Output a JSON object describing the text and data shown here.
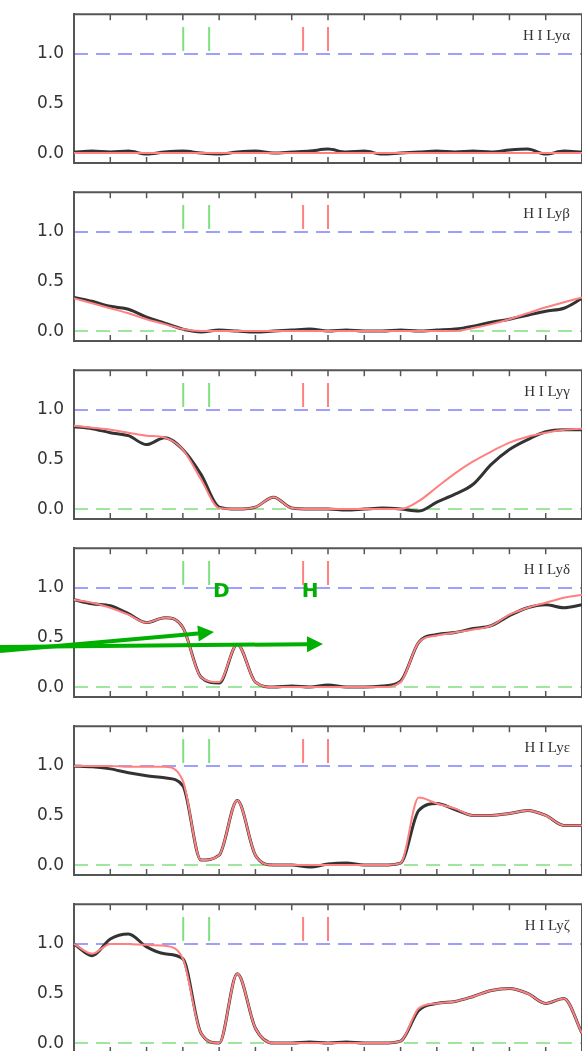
{
  "chart_data": [
    {
      "type": "line",
      "title": "H I Lyα",
      "categories": [
        null,
        null,
        null,
        null,
        null,
        null,
        null,
        null,
        null,
        null,
        null,
        null,
        null,
        null,
        null,
        null,
        null,
        null,
        null,
        null,
        null,
        null,
        null,
        null,
        null,
        null,
        null,
        null,
        null
      ],
      "ylim": [
        -0.1,
        1.4
      ],
      "yticks": [
        {
          "value": 0,
          "label": "0.0"
        },
        {
          "value": 0.5,
          "label": "0.5"
        },
        {
          "value": 1,
          "label": "1.0"
        }
      ],
      "tick_labels": "y",
      "series": [
        {
          "color": "#333333",
          "values": [
            0.01,
            0.02,
            0.01,
            0.02,
            -0.01,
            0.01,
            0.02,
            0.0,
            -0.01,
            0.01,
            0.02,
            0.0,
            0.01,
            0.02,
            0.04,
            0.01,
            0.02,
            -0.01,
            0.0,
            0.01,
            0.02,
            0.01,
            0.02,
            0.01,
            0.03,
            0.04,
            -0.01,
            0.02,
            0.01
          ]
        },
        {
          "color": "#ff8080",
          "values": [
            0.0,
            0.0,
            0.0,
            0.0,
            0.0,
            0.0,
            0.0,
            0.0,
            0.0,
            0.0,
            0.0,
            0.0,
            0.0,
            0.0,
            0.0,
            0.0,
            0.0,
            0.0,
            0.0,
            0.0,
            0.0,
            0.0,
            0.0,
            0.0,
            0.0,
            0.0,
            0.0,
            0.0,
            0.0
          ]
        }
      ],
      "ref_lines": [
        {
          "axis": "y",
          "value": 1,
          "color": "#8080ff",
          "line_style": "dashed"
        }
      ]
    },
    {
      "type": "line",
      "title": "H I Lyβ",
      "categories": [
        null,
        null,
        null,
        null,
        null,
        null,
        null,
        null,
        null,
        null,
        null,
        null,
        null,
        null,
        null,
        null,
        null,
        null,
        null,
        null,
        null,
        null,
        null,
        null,
        null,
        null,
        null,
        null,
        null
      ],
      "ylim": [
        -0.1,
        1.4
      ],
      "yticks": [
        {
          "value": 0,
          "label": "0.0"
        },
        {
          "value": 0.5,
          "label": "0.5"
        },
        {
          "value": 1,
          "label": "1.0"
        }
      ],
      "tick_labels": "y",
      "series": [
        {
          "color": "#333333",
          "values": [
            0.34,
            0.3,
            0.25,
            0.22,
            0.14,
            0.08,
            0.02,
            -0.01,
            0.01,
            0.0,
            -0.01,
            0.0,
            0.01,
            0.02,
            0.0,
            0.01,
            0.0,
            0.0,
            0.01,
            0.0,
            0.01,
            0.02,
            0.05,
            0.09,
            0.12,
            0.16,
            0.2,
            0.23,
            0.33
          ]
        },
        {
          "color": "#ff8080",
          "values": [
            0.33,
            0.28,
            0.23,
            0.18,
            0.12,
            0.07,
            0.02,
            0.0,
            0.0,
            0.0,
            0.0,
            0.0,
            0.0,
            0.0,
            0.0,
            0.0,
            0.0,
            0.0,
            0.0,
            0.0,
            0.0,
            0.0,
            0.03,
            0.07,
            0.12,
            0.18,
            0.24,
            0.29,
            0.34
          ]
        }
      ],
      "ref_lines": [
        {
          "axis": "y",
          "value": 1,
          "color": "#8080ff",
          "line_style": "dashed"
        },
        {
          "axis": "y",
          "value": 0,
          "color": "#80e080",
          "line_style": "dashed"
        }
      ]
    },
    {
      "type": "line",
      "title": "H I Lyγ",
      "categories": [
        null,
        null,
        null,
        null,
        null,
        null,
        null,
        null,
        null,
        null,
        null,
        null,
        null,
        null,
        null,
        null,
        null,
        null,
        null,
        null,
        null,
        null,
        null,
        null,
        null,
        null,
        null,
        null,
        null
      ],
      "ylim": [
        -0.1,
        1.4
      ],
      "yticks": [
        {
          "value": 0,
          "label": "0.0"
        },
        {
          "value": 0.5,
          "label": "0.5"
        },
        {
          "value": 1,
          "label": "1.0"
        }
      ],
      "tick_labels": "y",
      "series": [
        {
          "color": "#333333",
          "values": [
            0.83,
            0.81,
            0.77,
            0.74,
            0.65,
            0.72,
            0.6,
            0.35,
            0.02,
            0.0,
            0.02,
            0.12,
            0.01,
            0.0,
            0.0,
            -0.01,
            0.0,
            0.01,
            0.0,
            -0.02,
            0.07,
            0.15,
            0.25,
            0.45,
            0.6,
            0.7,
            0.78,
            0.8,
            0.8
          ]
        },
        {
          "color": "#ff8080",
          "values": [
            0.84,
            0.82,
            0.8,
            0.77,
            0.74,
            0.72,
            0.6,
            0.3,
            0.01,
            0.0,
            0.02,
            0.12,
            0.01,
            0.0,
            0.0,
            0.0,
            0.0,
            0.0,
            0.0,
            0.08,
            0.22,
            0.36,
            0.48,
            0.58,
            0.67,
            0.73,
            0.77,
            0.8,
            0.81
          ]
        }
      ],
      "ref_lines": [
        {
          "axis": "y",
          "value": 1,
          "color": "#8080ff",
          "line_style": "dashed"
        },
        {
          "axis": "y",
          "value": 0,
          "color": "#80e080",
          "line_style": "dashed"
        }
      ]
    },
    {
      "type": "line",
      "title": "H I Lyδ",
      "categories": [
        null,
        null,
        null,
        null,
        null,
        null,
        null,
        null,
        null,
        null,
        null,
        null,
        null,
        null,
        null,
        null,
        null,
        null,
        null,
        null,
        null,
        null,
        null,
        null,
        null,
        null,
        null,
        null,
        null
      ],
      "ylim": [
        -0.1,
        1.4
      ],
      "yticks": [
        {
          "value": 0,
          "label": "0.0"
        },
        {
          "value": 0.5,
          "label": "0.5"
        },
        {
          "value": 1,
          "label": "1.0"
        }
      ],
      "tick_labels": "y",
      "series": [
        {
          "color": "#333333",
          "values": [
            0.88,
            0.84,
            0.82,
            0.74,
            0.65,
            0.7,
            0.6,
            0.1,
            0.04,
            0.43,
            0.05,
            0.0,
            0.01,
            0.0,
            0.02,
            0.0,
            0.0,
            0.01,
            0.06,
            0.45,
            0.53,
            0.55,
            0.59,
            0.62,
            0.72,
            0.8,
            0.83,
            0.8,
            0.83
          ]
        },
        {
          "color": "#ff8080",
          "values": [
            0.88,
            0.85,
            0.8,
            0.73,
            0.65,
            0.7,
            0.6,
            0.1,
            0.05,
            0.43,
            0.05,
            0.0,
            0.0,
            0.0,
            0.0,
            0.0,
            0.0,
            0.0,
            0.05,
            0.45,
            0.52,
            0.55,
            0.58,
            0.62,
            0.73,
            0.8,
            0.85,
            0.9,
            0.93
          ]
        }
      ],
      "ref_lines": [
        {
          "axis": "y",
          "value": 1,
          "color": "#8080ff",
          "line_style": "dashed"
        },
        {
          "axis": "y",
          "value": 0,
          "color": "#80e080",
          "line_style": "dashed"
        }
      ],
      "annotations": [
        "D",
        "H"
      ]
    },
    {
      "type": "line",
      "title": "H I Lyε",
      "categories": [
        null,
        null,
        null,
        null,
        null,
        null,
        null,
        null,
        null,
        null,
        null,
        null,
        null,
        null,
        null,
        null,
        null,
        null,
        null,
        null,
        null,
        null,
        null,
        null,
        null,
        null,
        null,
        null,
        null
      ],
      "ylim": [
        -0.1,
        1.4
      ],
      "yticks": [
        {
          "value": 0,
          "label": "0.0"
        },
        {
          "value": 0.5,
          "label": "0.5"
        },
        {
          "value": 1,
          "label": "1.0"
        }
      ],
      "tick_labels": "y",
      "series": [
        {
          "color": "#333333",
          "values": [
            1.0,
            0.99,
            0.97,
            0.93,
            0.9,
            0.88,
            0.8,
            0.05,
            0.1,
            0.65,
            0.1,
            0.0,
            0.0,
            -0.02,
            0.01,
            0.02,
            0.0,
            0.0,
            0.02,
            0.55,
            0.62,
            0.56,
            0.5,
            0.5,
            0.52,
            0.55,
            0.5,
            0.4,
            0.4
          ]
        },
        {
          "color": "#ff8080",
          "values": [
            1.0,
            1.0,
            1.0,
            0.99,
            0.99,
            0.99,
            0.85,
            0.05,
            0.1,
            0.65,
            0.1,
            0.0,
            0.0,
            0.0,
            0.0,
            0.0,
            0.0,
            0.0,
            0.02,
            0.68,
            0.62,
            0.57,
            0.5,
            0.5,
            0.52,
            0.55,
            0.5,
            0.4,
            0.4
          ]
        }
      ],
      "ref_lines": [
        {
          "axis": "y",
          "value": 1,
          "color": "#8080ff",
          "line_style": "dashed"
        },
        {
          "axis": "y",
          "value": 0,
          "color": "#80e080",
          "line_style": "dashed"
        }
      ]
    },
    {
      "type": "line",
      "title": "H I Lyζ",
      "categories": [
        null,
        null,
        null,
        null,
        null,
        null,
        null,
        null,
        null,
        null,
        null,
        null,
        null,
        null,
        null,
        null,
        null,
        null,
        null,
        null,
        null,
        null,
        null,
        null,
        null,
        null,
        null,
        null,
        null
      ],
      "ylim": [
        -0.1,
        1.4
      ],
      "yticks": [
        {
          "value": 0,
          "label": "0.0"
        },
        {
          "value": 0.5,
          "label": "0.5"
        },
        {
          "value": 1,
          "label": "1.0"
        }
      ],
      "tick_labels": "y",
      "series": [
        {
          "color": "#333333",
          "values": [
            1.0,
            0.88,
            1.05,
            1.1,
            0.97,
            0.9,
            0.85,
            0.1,
            0.0,
            0.7,
            0.15,
            0.0,
            0.0,
            0.01,
            0.0,
            0.01,
            0.0,
            0.0,
            0.02,
            0.33,
            0.4,
            0.42,
            0.47,
            0.53,
            0.55,
            0.5,
            0.4,
            0.45,
            0.1
          ]
        },
        {
          "color": "#ff8080",
          "values": [
            1.0,
            0.9,
            1.0,
            1.0,
            0.99,
            0.98,
            0.85,
            0.1,
            0.0,
            0.7,
            0.15,
            0.0,
            0.0,
            0.0,
            0.0,
            0.0,
            0.0,
            0.0,
            0.02,
            0.35,
            0.4,
            0.42,
            0.47,
            0.53,
            0.55,
            0.5,
            0.4,
            0.45,
            0.1
          ]
        }
      ],
      "ref_lines": [
        {
          "axis": "y",
          "value": 1,
          "color": "#8080ff",
          "line_style": "dashed"
        },
        {
          "axis": "y",
          "value": 0,
          "color": "#80e080",
          "line_style": "dashed"
        }
      ]
    }
  ]
}
